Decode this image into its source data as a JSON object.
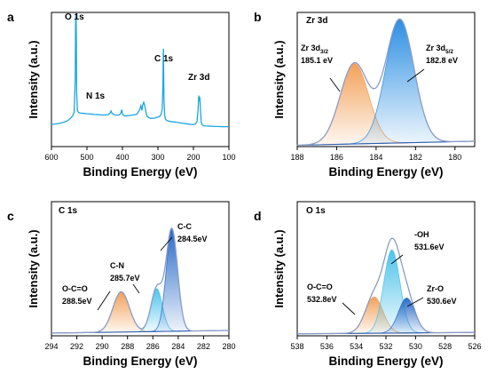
{
  "chart_data": [
    {
      "id": "a",
      "type": "line",
      "panel_letter": "a",
      "xlabel": "Binding Energy (eV)",
      "ylabel": "Intensity (a.u.)",
      "xlim": [
        600,
        100
      ],
      "x_ticks": [
        600,
        500,
        400,
        300,
        200,
        100
      ],
      "ylim": [
        0,
        100
      ],
      "colors": {
        "line": "#1aa6e0"
      },
      "series": [
        {
          "name": "",
          "x": [
            600,
            590,
            580,
            570,
            560,
            550,
            545,
            540,
            536,
            533,
            532,
            531,
            530,
            529,
            527,
            524,
            520,
            510,
            500,
            490,
            480,
            470,
            460,
            450,
            440,
            435,
            432,
            430,
            425,
            420,
            410,
            405,
            402,
            400,
            397,
            395,
            390,
            380,
            370,
            360,
            352,
            348,
            345,
            343,
            340,
            337,
            335,
            333,
            330,
            325,
            320,
            310,
            300,
            295,
            291,
            288,
            286,
            285,
            284.5,
            284,
            283,
            281,
            279,
            275,
            270,
            260,
            250,
            240,
            230,
            220,
            210,
            200,
            195,
            190,
            187,
            185,
            183,
            182,
            180,
            178,
            175,
            170,
            160,
            150,
            140,
            130,
            120,
            110,
            100
          ],
          "y": [
            16.5,
            16.8,
            17.2,
            17.8,
            18.6,
            20.2,
            21.5,
            23,
            26,
            50,
            95,
            99,
            86,
            40,
            27,
            25.5,
            25,
            24.8,
            24.5,
            24.3,
            24,
            23.8,
            23.6,
            23.6,
            23.8,
            25,
            26.5,
            25,
            24,
            23.5,
            23.6,
            24.5,
            27.5,
            24.8,
            23.3,
            23,
            22.8,
            23.2,
            23.6,
            24,
            27,
            30.5,
            27,
            31,
            33,
            30.5,
            27.5,
            24.5,
            22.5,
            21.5,
            21,
            21.2,
            22,
            22.5,
            24,
            28,
            45,
            68,
            73,
            60,
            35,
            23.5,
            20.5,
            19.5,
            19,
            18.5,
            18.2,
            17.8,
            17.4,
            17,
            16.6,
            16.4,
            16.8,
            18.5,
            27,
            38,
            34,
            37,
            26,
            18.5,
            16,
            15.4,
            15.3,
            15.2,
            15,
            15,
            14.8,
            14.8,
            14.8
          ]
        }
      ],
      "annotations": [
        {
          "text": "O 1s",
          "x": 540,
          "y": 100
        },
        {
          "text": "N 1s",
          "x": 410,
          "y": 31
        },
        {
          "text": "C 1s",
          "x": 290,
          "y": 76
        },
        {
          "text": "Zr 3d",
          "x": 185,
          "y": 42
        }
      ]
    },
    {
      "id": "b",
      "type": "area",
      "panel_letter": "b",
      "title": "Zr 3d",
      "xlabel": "Binding Energy (eV)",
      "ylabel": "Intensity (a.u.)",
      "xlim": [
        188,
        179
      ],
      "x_ticks": [
        188,
        186,
        184,
        182,
        180
      ],
      "ylim": [
        0,
        100
      ],
      "colors": {
        "peak_1": "#f3a15a",
        "peak_2": "#2d8fe3",
        "envelope": "#8a9cc7",
        "baseline": "#2d5fb0"
      },
      "baseline": [
        {
          "x": 188,
          "y": 1
        },
        {
          "x": 179,
          "y": 4
        }
      ],
      "series": [
        {
          "name": "Zr 3d3/2",
          "center": 185.1,
          "height": 60,
          "width": 0.72
        },
        {
          "name": "Zr 3d5/2",
          "center": 182.8,
          "height": 92,
          "width": 0.72
        }
      ],
      "annotations": [
        {
          "main": "Zr 3d",
          "sub": "3/2",
          "value": "185.1 eV",
          "peak": 185.1
        },
        {
          "main": "Zr 3d",
          "sub": "5/2",
          "value": "182.8 eV",
          "peak": 182.8
        }
      ]
    },
    {
      "id": "c",
      "type": "area",
      "panel_letter": "c",
      "title": "C 1s",
      "xlabel": "Binding Energy (eV)",
      "ylabel": "Intensity (a.u.)",
      "xlim": [
        294,
        280
      ],
      "x_ticks": [
        294,
        292,
        290,
        288,
        286,
        284,
        282,
        280
      ],
      "ylim": [
        0,
        100
      ],
      "colors": {
        "O-C=O": "#f3a15a",
        "C-N": "#4ec3ea",
        "C-C": "#2a6cc8",
        "envelope": "#8a9cc7",
        "baseline": "#2d5fb0"
      },
      "baseline": [
        {
          "x": 294,
          "y": 2
        },
        {
          "x": 280,
          "y": 4
        }
      ],
      "series": [
        {
          "name": "O-C=O",
          "center": 288.5,
          "height": 30,
          "width": 0.65
        },
        {
          "name": "C-N",
          "center": 285.7,
          "height": 32,
          "width": 0.45
        },
        {
          "name": "C-C",
          "center": 284.5,
          "height": 76,
          "width": 0.45
        }
      ],
      "annotations": [
        {
          "label": "O-C=O",
          "value": "288.5eV",
          "peak": 288.5
        },
        {
          "label": "C-N",
          "value": "285.7eV",
          "peak": 285.7
        },
        {
          "label": "C-C",
          "value": "284.5eV",
          "peak": 284.5
        }
      ]
    },
    {
      "id": "d",
      "type": "area",
      "panel_letter": "d",
      "title": "O 1s",
      "xlabel": "Binding Energy (eV)",
      "ylabel": "Intensity (a.u.)",
      "xlim": [
        538,
        526
      ],
      "x_ticks": [
        538,
        536,
        534,
        532,
        530,
        528,
        526
      ],
      "ylim": [
        0,
        100
      ],
      "colors": {
        "O-C=O": "#f3a15a",
        "-OH": "#4ec3ea",
        "Zr-O": "#2a6cc8",
        "envelope": "#8a9cc7",
        "baseline": "#2d5fb0"
      },
      "baseline": [
        {
          "x": 538,
          "y": 1.5
        },
        {
          "x": 526,
          "y": 2.5
        }
      ],
      "series": [
        {
          "name": "O-C=O",
          "center": 532.8,
          "height": 27,
          "width": 0.6
        },
        {
          "name": "-OH",
          "center": 531.6,
          "height": 62,
          "width": 0.55
        },
        {
          "name": "Zr-O",
          "center": 530.6,
          "height": 26,
          "width": 0.55
        }
      ],
      "annotations": [
        {
          "label": "O-C=O",
          "value": "532.8eV",
          "peak": 532.8
        },
        {
          "label": "-OH",
          "value": "531.6eV",
          "peak": 531.6
        },
        {
          "label": "Zr-O",
          "value": "530.6eV",
          "peak": 530.6
        }
      ]
    }
  ]
}
